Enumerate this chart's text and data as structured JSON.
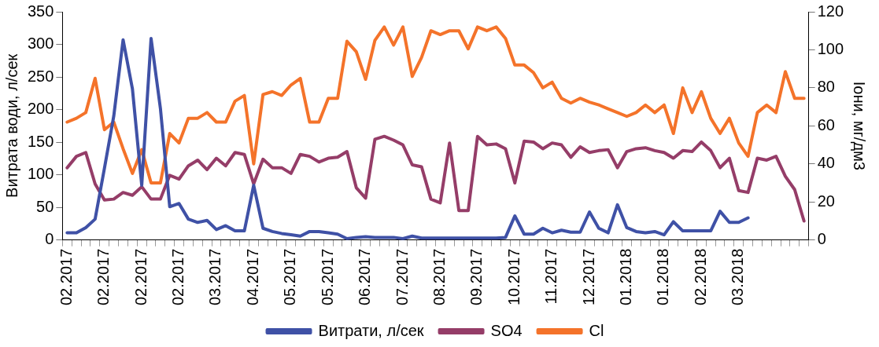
{
  "chart_data": {
    "type": "line",
    "ylabel": "Витрата води, л/сек",
    "y2label": "Іони, мг/дм3",
    "categories": [
      "02.2017",
      null,
      null,
      null,
      "02.2017",
      null,
      null,
      null,
      "02.2017",
      null,
      null,
      null,
      "02.2017",
      null,
      null,
      null,
      "03.2017",
      null,
      null,
      null,
      "04.2017",
      null,
      null,
      null,
      "05.2017",
      null,
      null,
      null,
      "05.2017",
      null,
      null,
      null,
      "06.2017",
      null,
      null,
      null,
      "07.2017",
      null,
      null,
      null,
      "08.2017",
      null,
      null,
      null,
      "09.2017",
      null,
      null,
      null,
      "10.2017",
      null,
      null,
      null,
      "11.2017",
      null,
      null,
      null,
      "12.2017",
      null,
      null,
      null,
      "01.2018",
      null,
      null,
      null,
      "01.2018",
      null,
      null,
      null,
      "02.2018",
      null,
      null,
      null,
      "03.2018",
      null,
      null,
      null,
      null,
      null,
      null,
      null
    ],
    "series": [
      {
        "name": "Витрати, л/сек",
        "color": "#3f51a6",
        "axis": "y",
        "values": [
          11,
          11,
          19,
          32,
          110,
          190,
          307,
          232,
          84,
          309,
          202,
          51,
          56,
          32,
          27,
          30,
          16,
          22,
          14,
          14,
          84,
          18,
          13,
          10,
          8,
          6,
          13,
          13,
          11,
          9,
          2,
          4,
          5,
          4,
          4,
          4,
          2,
          6,
          3,
          3,
          3,
          3,
          3,
          3,
          3,
          3,
          3,
          4,
          37,
          9,
          9,
          18,
          11,
          15,
          12,
          12,
          43,
          18,
          11,
          54,
          19,
          13,
          11,
          13,
          8,
          28,
          14,
          14,
          14,
          14,
          44,
          27,
          27,
          34,
          null,
          null,
          null,
          null,
          null,
          null
        ]
      },
      {
        "name": "SO4",
        "color": "#953d68",
        "axis": "y2",
        "values": [
          38,
          44,
          46,
          29.5,
          21,
          21.5,
          25,
          23.5,
          28,
          21.5,
          21.5,
          34,
          32,
          39,
          42,
          37,
          43,
          39,
          46,
          45,
          29.5,
          42.5,
          38,
          38,
          35,
          45,
          44,
          41,
          43,
          43.5,
          46.5,
          27.5,
          22,
          53,
          54.5,
          52.5,
          50,
          39.5,
          38.5,
          21.5,
          19.5,
          51,
          15.5,
          15.5,
          54.5,
          50,
          50.5,
          48,
          30,
          52,
          51.5,
          48,
          51,
          50,
          43.5,
          49,
          46,
          47,
          47.5,
          38,
          46.5,
          48,
          48.5,
          47,
          46,
          43,
          47,
          46.5,
          51.5,
          47,
          38,
          43,
          26,
          25,
          43,
          42,
          44,
          33.5,
          26.5,
          10
        ]
      },
      {
        "name": "Cl",
        "color": "#f4732a",
        "axis": "y2",
        "values": [
          62,
          64,
          67,
          85,
          58,
          62,
          48,
          35,
          47.5,
          30,
          30,
          56,
          51,
          64,
          64,
          67,
          62,
          62,
          73,
          76,
          40,
          76.5,
          78,
          76,
          81.5,
          85,
          62,
          62,
          74.5,
          74.5,
          104.5,
          99,
          84.5,
          105,
          112,
          102.5,
          112,
          86,
          96,
          110,
          108,
          110,
          110,
          100.5,
          112,
          110,
          112,
          106,
          92,
          92,
          88,
          80,
          83,
          74.5,
          72,
          74.5,
          72.5,
          71,
          69,
          67,
          65,
          67,
          71,
          67,
          71,
          56,
          80,
          67,
          78,
          64,
          56,
          64,
          51,
          44,
          67,
          71,
          67,
          88.5,
          74.5,
          74.5
        ]
      }
    ],
    "ylim": [
      0,
      350
    ],
    "yticks": [
      0,
      50,
      100,
      150,
      200,
      250,
      300,
      350
    ],
    "y2lim": [
      0,
      120
    ],
    "y2ticks": [
      0,
      20,
      40,
      60,
      80,
      100,
      120
    ],
    "legend": "bottom",
    "grid": false,
    "marker": "none",
    "line_style": "solid"
  }
}
